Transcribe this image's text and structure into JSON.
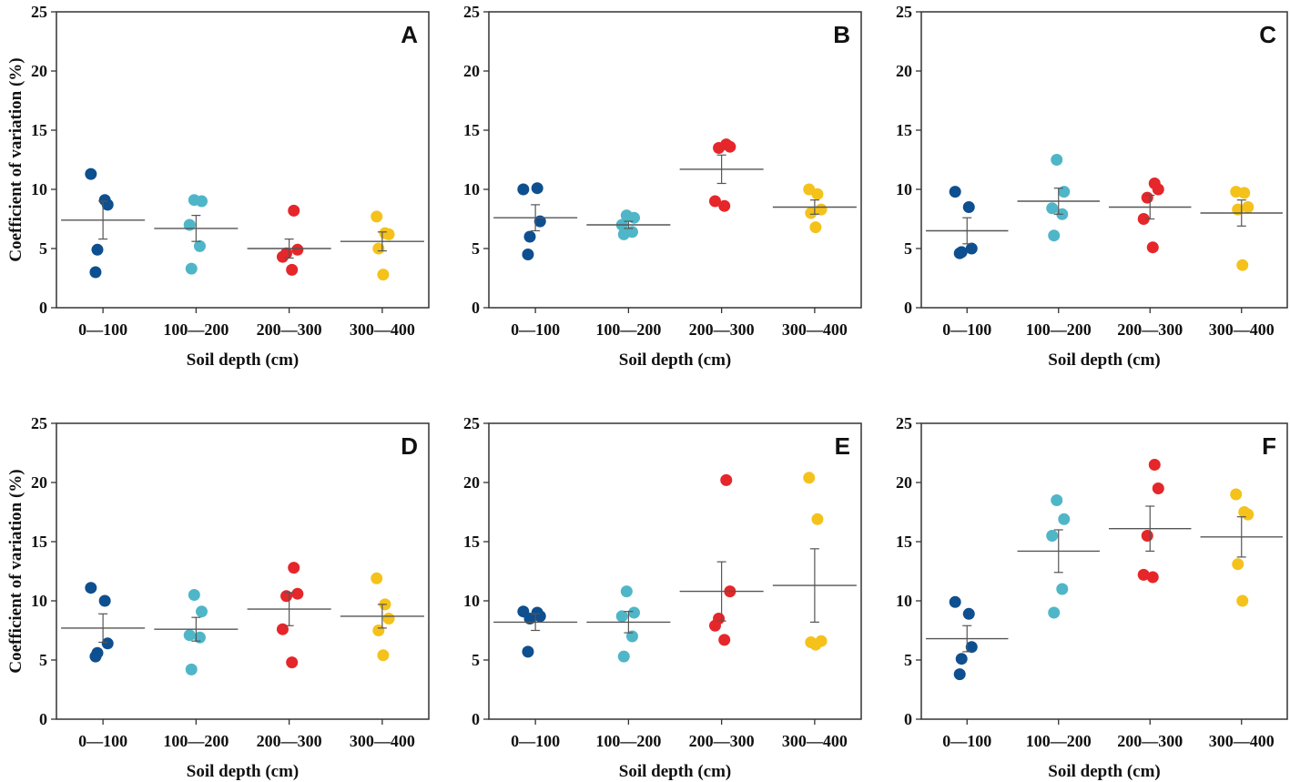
{
  "figure": {
    "y_axis_label": "Coefficient of variation (%)",
    "x_axis_label": "Soil depth (cm)"
  },
  "colors": {
    "0—100": "#0e4f8f",
    "100—200": "#4fb6c8",
    "200—300": "#e5262a",
    "300—400": "#f4c21b",
    "axis": "#333333",
    "mean_line": "#555555"
  },
  "chart_data": [
    {
      "panel": "A",
      "type": "scatter",
      "title": "A",
      "categories": [
        "0—100",
        "100—200",
        "200—300",
        "300—400"
      ],
      "ylim": [
        0,
        25
      ],
      "yticks": [
        0,
        5,
        10,
        15,
        20,
        25
      ],
      "xlabel": "Soil depth (cm)",
      "ylabel": "Coefficient of variation (%)",
      "points": [
        [
          11.3,
          9.1,
          8.7,
          4.9,
          3.0
        ],
        [
          9.1,
          9.0,
          7.0,
          5.2,
          3.3
        ],
        [
          8.2,
          4.9,
          4.6,
          4.3,
          3.2
        ],
        [
          7.7,
          6.3,
          6.2,
          5.0,
          2.8
        ]
      ],
      "mean": [
        7.4,
        6.7,
        5.0,
        5.6
      ],
      "se": [
        1.6,
        1.1,
        0.8,
        0.8
      ]
    },
    {
      "panel": "B",
      "type": "scatter",
      "title": "B",
      "categories": [
        "0—100",
        "100—200",
        "200—300",
        "300—400"
      ],
      "ylim": [
        0,
        25
      ],
      "yticks": [
        0,
        5,
        10,
        15,
        20,
        25
      ],
      "xlabel": "Soil depth (cm)",
      "ylabel": "",
      "points": [
        [
          10.0,
          10.1,
          7.3,
          6.0,
          4.5
        ],
        [
          7.8,
          7.6,
          7.0,
          6.4,
          6.2
        ],
        [
          13.8,
          13.6,
          13.5,
          9.0,
          8.6
        ],
        [
          10.0,
          9.6,
          8.3,
          8.0,
          6.8
        ]
      ],
      "mean": [
        7.6,
        7.0,
        11.7,
        8.5
      ],
      "se": [
        1.1,
        0.3,
        1.2,
        0.6
      ]
    },
    {
      "panel": "C",
      "type": "scatter",
      "title": "C",
      "categories": [
        "0—100",
        "100—200",
        "200—300",
        "300—400"
      ],
      "ylim": [
        0,
        25
      ],
      "yticks": [
        0,
        5,
        10,
        15,
        20,
        25
      ],
      "xlabel": "Soil depth (cm)",
      "ylabel": "",
      "points": [
        [
          9.8,
          8.5,
          5.0,
          4.7,
          4.6
        ],
        [
          12.5,
          9.8,
          8.4,
          7.9,
          6.1
        ],
        [
          10.5,
          10.0,
          9.3,
          7.5,
          5.1
        ],
        [
          9.8,
          9.7,
          8.5,
          8.3,
          3.6
        ]
      ],
      "mean": [
        6.5,
        9.0,
        8.5,
        8.0
      ],
      "se": [
        1.1,
        1.1,
        1.0,
        1.1
      ]
    },
    {
      "panel": "D",
      "type": "scatter",
      "title": "D",
      "categories": [
        "0—100",
        "100—200",
        "200—300",
        "300—400"
      ],
      "ylim": [
        0,
        25
      ],
      "yticks": [
        0,
        5,
        10,
        15,
        20,
        25
      ],
      "xlabel": "Soil depth (cm)",
      "ylabel": "Coefficient of variation (%)",
      "points": [
        [
          11.1,
          10.0,
          6.4,
          5.6,
          5.3
        ],
        [
          10.5,
          9.1,
          7.1,
          6.9,
          4.2
        ],
        [
          12.8,
          10.6,
          10.4,
          7.6,
          4.8
        ],
        [
          11.9,
          9.7,
          8.5,
          7.5,
          5.4
        ]
      ],
      "mean": [
        7.7,
        7.6,
        9.3,
        8.7
      ],
      "se": [
        1.2,
        1.0,
        1.4,
        1.0
      ]
    },
    {
      "panel": "E",
      "type": "scatter",
      "title": "E",
      "categories": [
        "0—100",
        "100—200",
        "200—300",
        "300—400"
      ],
      "ylim": [
        0,
        25
      ],
      "yticks": [
        0,
        5,
        10,
        15,
        20,
        25
      ],
      "xlabel": "Soil depth (cm)",
      "ylabel": "",
      "points": [
        [
          9.1,
          9.0,
          8.7,
          8.5,
          5.7
        ],
        [
          10.8,
          9.0,
          8.7,
          7.0,
          5.3
        ],
        [
          20.2,
          10.8,
          8.5,
          7.9,
          6.7
        ],
        [
          20.4,
          16.9,
          6.6,
          6.5,
          6.3
        ]
      ],
      "mean": [
        8.2,
        8.2,
        10.8,
        11.3
      ],
      "se": [
        0.7,
        0.9,
        2.5,
        3.1
      ]
    },
    {
      "panel": "F",
      "type": "scatter",
      "title": "F",
      "categories": [
        "0—100",
        "100—200",
        "200—300",
        "300—400"
      ],
      "ylim": [
        0,
        25
      ],
      "yticks": [
        0,
        5,
        10,
        15,
        20,
        25
      ],
      "xlabel": "Soil depth (cm)",
      "ylabel": "",
      "points": [
        [
          9.9,
          8.9,
          6.1,
          5.1,
          3.8
        ],
        [
          18.5,
          16.9,
          15.5,
          11.0,
          9.0
        ],
        [
          21.5,
          19.5,
          15.5,
          12.2,
          12.0
        ],
        [
          19.0,
          17.5,
          17.3,
          13.1,
          10.0
        ]
      ],
      "mean": [
        6.8,
        14.2,
        16.1,
        15.4
      ],
      "se": [
        1.1,
        1.8,
        1.9,
        1.7
      ]
    }
  ]
}
